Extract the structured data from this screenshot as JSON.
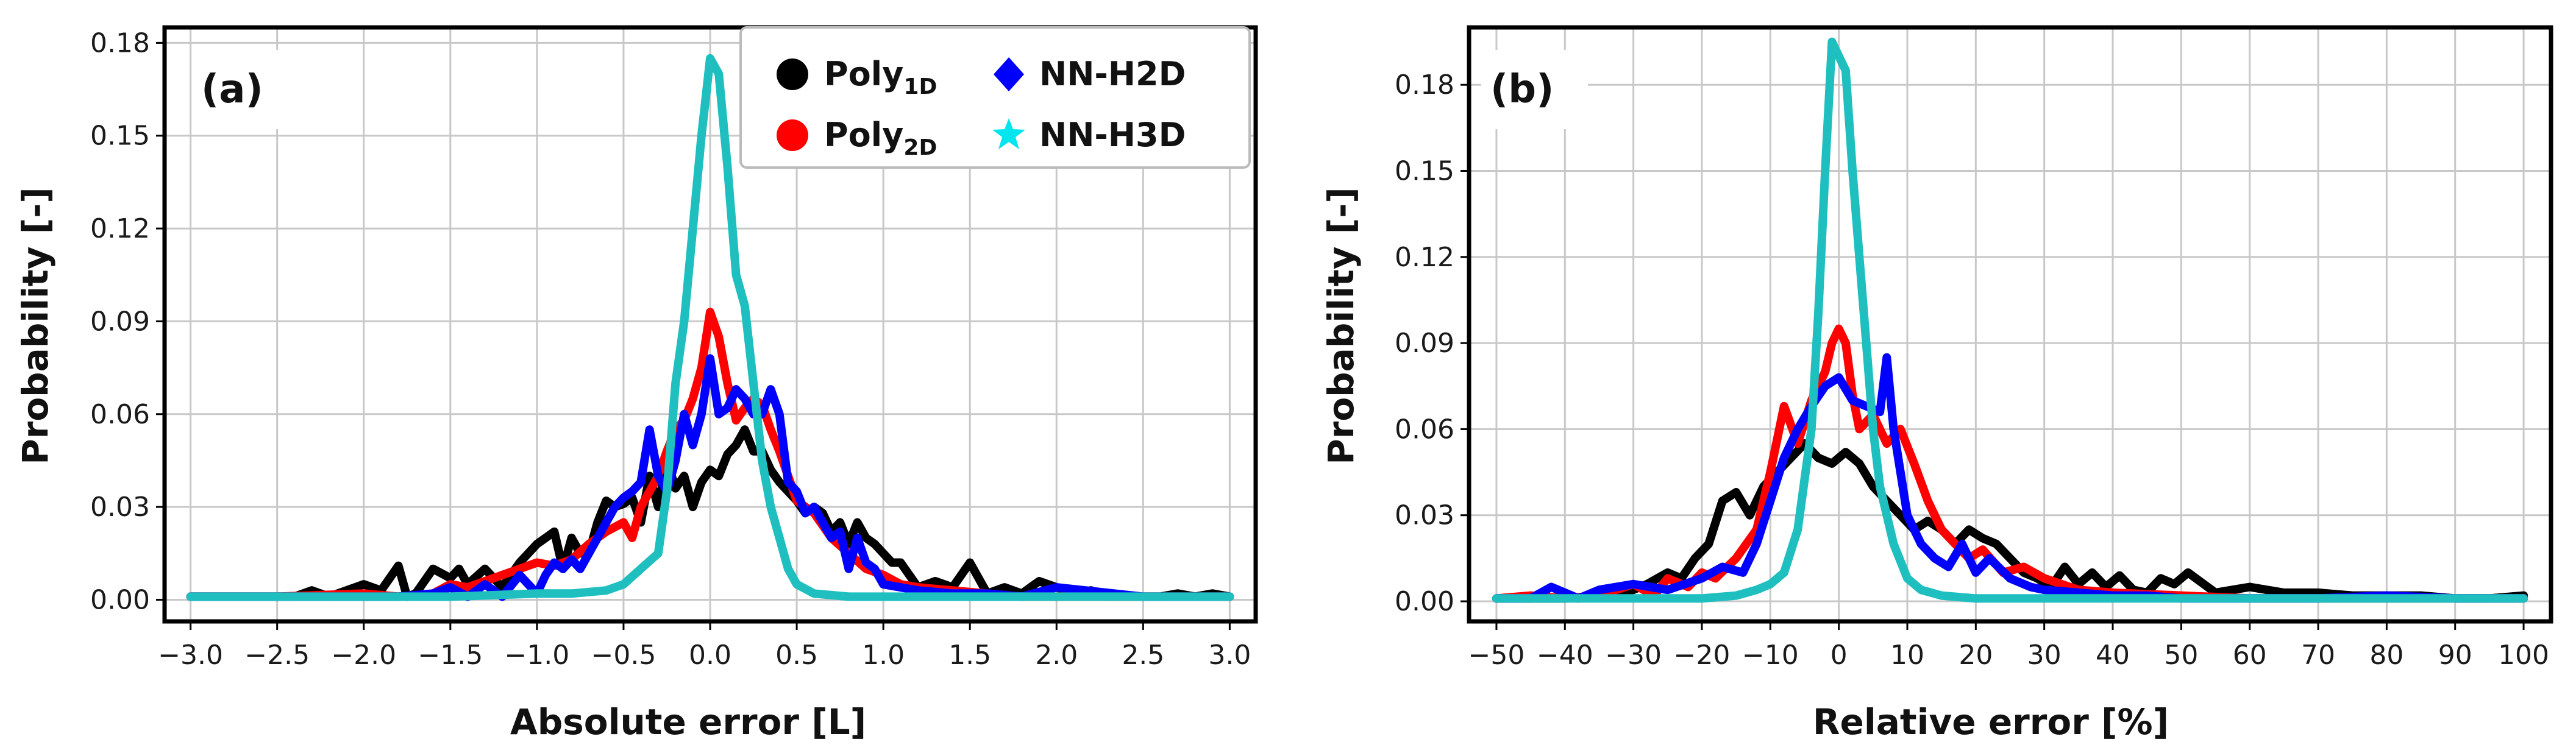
{
  "chart_data": [
    {
      "type": "line",
      "panel_label": "(a)",
      "xlabel": "Absolute error [L]",
      "ylabel": "Probability [-]",
      "xlim": [
        -3.15,
        3.15
      ],
      "ylim": [
        -0.007,
        0.185
      ],
      "xticks": [
        -3.0,
        -2.5,
        -2.0,
        -1.5,
        -1.0,
        -0.5,
        0.0,
        0.5,
        1.0,
        1.5,
        2.0,
        2.5,
        3.0
      ],
      "xtick_labels": [
        "−3.0",
        "−2.5",
        "−2.0",
        "−1.5",
        "−1.0",
        "−0.5",
        "0.0",
        "0.5",
        "1.0",
        "1.5",
        "2.0",
        "2.5",
        "3.0"
      ],
      "yticks": [
        0.0,
        0.03,
        0.06,
        0.09,
        0.12,
        0.15,
        0.18
      ],
      "ytick_labels": [
        "0.00",
        "0.03",
        "0.06",
        "0.09",
        "0.12",
        "0.15",
        "0.18"
      ],
      "grid": true,
      "legend": {
        "placement": "top-right",
        "items": [
          {
            "label": "Poly",
            "sub": "1D",
            "marker": "circle",
            "color": "#000000"
          },
          {
            "label": "Poly",
            "sub": "2D",
            "marker": "circle",
            "color": "#ff0000"
          },
          {
            "label": "NN-H2D",
            "sub": "",
            "marker": "diamond",
            "color": "#0000ff"
          },
          {
            "label": "NN-H3D",
            "sub": "",
            "marker": "star",
            "color": "#00e5ee"
          }
        ]
      },
      "series": [
        {
          "name": "Poly1D",
          "color": "#000000",
          "x": [
            -3.0,
            -2.8,
            -2.6,
            -2.4,
            -2.3,
            -2.2,
            -2.1,
            -2.0,
            -1.9,
            -1.8,
            -1.75,
            -1.7,
            -1.6,
            -1.5,
            -1.45,
            -1.4,
            -1.3,
            -1.2,
            -1.1,
            -1.0,
            -0.95,
            -0.9,
            -0.85,
            -0.8,
            -0.75,
            -0.7,
            -0.65,
            -0.6,
            -0.55,
            -0.5,
            -0.45,
            -0.4,
            -0.35,
            -0.3,
            -0.25,
            -0.2,
            -0.15,
            -0.1,
            -0.05,
            0.0,
            0.05,
            0.1,
            0.15,
            0.2,
            0.25,
            0.3,
            0.35,
            0.4,
            0.45,
            0.5,
            0.55,
            0.6,
            0.65,
            0.7,
            0.75,
            0.8,
            0.85,
            0.9,
            0.95,
            1.0,
            1.05,
            1.1,
            1.2,
            1.3,
            1.4,
            1.5,
            1.6,
            1.7,
            1.8,
            1.9,
            2.0,
            2.1,
            2.2,
            2.3,
            2.4,
            2.5,
            2.6,
            2.7,
            2.8,
            2.9,
            3.0
          ],
          "values": [
            0.001,
            0.001,
            0.001,
            0.001,
            0.003,
            0.001,
            0.003,
            0.005,
            0.003,
            0.011,
            0.001,
            0.002,
            0.01,
            0.007,
            0.01,
            0.005,
            0.01,
            0.004,
            0.012,
            0.018,
            0.02,
            0.022,
            0.01,
            0.02,
            0.015,
            0.015,
            0.025,
            0.032,
            0.03,
            0.031,
            0.033,
            0.025,
            0.04,
            0.03,
            0.045,
            0.036,
            0.04,
            0.03,
            0.038,
            0.042,
            0.04,
            0.047,
            0.05,
            0.055,
            0.048,
            0.048,
            0.042,
            0.038,
            0.035,
            0.032,
            0.028,
            0.03,
            0.028,
            0.022,
            0.025,
            0.018,
            0.025,
            0.02,
            0.018,
            0.015,
            0.012,
            0.012,
            0.004,
            0.006,
            0.004,
            0.012,
            0.002,
            0.004,
            0.002,
            0.006,
            0.004,
            0.002,
            0.003,
            0.001,
            0.001,
            0.001,
            0.001,
            0.002,
            0.001,
            0.002,
            0.001
          ]
        },
        {
          "name": "Poly2D",
          "color": "#ff0000",
          "x": [
            -3.0,
            -2.5,
            -2.0,
            -1.8,
            -1.6,
            -1.5,
            -1.4,
            -1.3,
            -1.2,
            -1.1,
            -1.0,
            -0.9,
            -0.8,
            -0.7,
            -0.6,
            -0.5,
            -0.45,
            -0.4,
            -0.35,
            -0.3,
            -0.25,
            -0.2,
            -0.15,
            -0.1,
            -0.05,
            0.0,
            0.05,
            0.1,
            0.15,
            0.2,
            0.25,
            0.3,
            0.35,
            0.4,
            0.45,
            0.5,
            0.55,
            0.6,
            0.7,
            0.8,
            0.9,
            1.0,
            1.1,
            1.2,
            1.4,
            1.6,
            1.8,
            2.0,
            2.5,
            3.0
          ],
          "values": [
            0.001,
            0.001,
            0.002,
            0.001,
            0.002,
            0.005,
            0.004,
            0.006,
            0.008,
            0.01,
            0.012,
            0.011,
            0.013,
            0.018,
            0.022,
            0.025,
            0.02,
            0.03,
            0.035,
            0.04,
            0.048,
            0.055,
            0.058,
            0.065,
            0.075,
            0.093,
            0.085,
            0.07,
            0.058,
            0.062,
            0.065,
            0.063,
            0.055,
            0.048,
            0.04,
            0.032,
            0.03,
            0.028,
            0.02,
            0.015,
            0.01,
            0.008,
            0.005,
            0.004,
            0.003,
            0.002,
            0.001,
            0.001,
            0.001,
            0.001
          ]
        },
        {
          "name": "NN-H2D",
          "color": "#0000ff",
          "x": [
            -3.0,
            -2.5,
            -2.0,
            -1.8,
            -1.6,
            -1.5,
            -1.4,
            -1.3,
            -1.2,
            -1.1,
            -1.0,
            -0.95,
            -0.9,
            -0.85,
            -0.8,
            -0.75,
            -0.7,
            -0.65,
            -0.6,
            -0.55,
            -0.5,
            -0.45,
            -0.4,
            -0.35,
            -0.3,
            -0.25,
            -0.2,
            -0.15,
            -0.1,
            -0.05,
            0.0,
            0.05,
            0.1,
            0.15,
            0.2,
            0.25,
            0.3,
            0.35,
            0.4,
            0.45,
            0.5,
            0.55,
            0.6,
            0.65,
            0.7,
            0.75,
            0.8,
            0.85,
            0.9,
            0.95,
            1.0,
            1.1,
            1.2,
            1.4,
            1.6,
            1.8,
            2.0,
            2.5,
            3.0
          ],
          "values": [
            0.001,
            0.001,
            0.001,
            0.001,
            0.002,
            0.004,
            0.001,
            0.005,
            0.001,
            0.008,
            0.002,
            0.008,
            0.012,
            0.01,
            0.013,
            0.01,
            0.015,
            0.02,
            0.025,
            0.03,
            0.033,
            0.035,
            0.038,
            0.055,
            0.04,
            0.035,
            0.045,
            0.06,
            0.05,
            0.06,
            0.078,
            0.06,
            0.062,
            0.068,
            0.065,
            0.06,
            0.06,
            0.068,
            0.06,
            0.038,
            0.035,
            0.028,
            0.03,
            0.025,
            0.02,
            0.022,
            0.01,
            0.02,
            0.012,
            0.01,
            0.005,
            0.004,
            0.003,
            0.002,
            0.002,
            0.001,
            0.004,
            0.001,
            0.001
          ]
        },
        {
          "name": "NN-H3D",
          "color": "#1fbfbf",
          "x": [
            -3.0,
            -2.0,
            -1.5,
            -1.0,
            -0.8,
            -0.6,
            -0.5,
            -0.4,
            -0.3,
            -0.25,
            -0.2,
            -0.15,
            -0.1,
            -0.05,
            0.0,
            0.05,
            0.1,
            0.15,
            0.2,
            0.25,
            0.3,
            0.35,
            0.4,
            0.45,
            0.5,
            0.6,
            0.8,
            1.0,
            1.5,
            2.0,
            3.0
          ],
          "values": [
            0.001,
            0.001,
            0.001,
            0.002,
            0.002,
            0.003,
            0.005,
            0.01,
            0.015,
            0.035,
            0.07,
            0.09,
            0.12,
            0.15,
            0.175,
            0.17,
            0.14,
            0.105,
            0.095,
            0.07,
            0.045,
            0.03,
            0.02,
            0.01,
            0.005,
            0.002,
            0.001,
            0.001,
            0.001,
            0.001,
            0.001
          ]
        }
      ]
    },
    {
      "type": "line",
      "panel_label": "(b)",
      "xlabel": "Relative error [%]",
      "ylabel": "Probability [-]",
      "xlim": [
        -54,
        104
      ],
      "ylim": [
        -0.007,
        0.2
      ],
      "xticks": [
        -50,
        -40,
        -30,
        -20,
        -10,
        0,
        10,
        20,
        30,
        40,
        50,
        60,
        70,
        80,
        90,
        100
      ],
      "xtick_labels": [
        "−50",
        "−40",
        "−30",
        "−20",
        "−10",
        "0",
        "10",
        "20",
        "30",
        "40",
        "50",
        "60",
        "70",
        "80",
        "90",
        "100"
      ],
      "yticks": [
        0.0,
        0.03,
        0.06,
        0.09,
        0.12,
        0.15,
        0.18
      ],
      "ytick_labels": [
        "0.00",
        "0.03",
        "0.06",
        "0.09",
        "0.12",
        "0.15",
        "0.18"
      ],
      "grid": true,
      "series": [
        {
          "name": "Poly1D",
          "color": "#000000",
          "x": [
            -50,
            -45,
            -40,
            -35,
            -30,
            -28,
            -25,
            -23,
            -21,
            -19,
            -17,
            -15,
            -13,
            -11,
            -9,
            -7,
            -5,
            -3,
            -1,
            1,
            3,
            5,
            7,
            9,
            11,
            13,
            15,
            17,
            19,
            21,
            23,
            25,
            27,
            29,
            31,
            33,
            35,
            37,
            39,
            41,
            43,
            45,
            47,
            49,
            51,
            55,
            60,
            65,
            70,
            75,
            80,
            85,
            90,
            95,
            100
          ],
          "values": [
            0.001,
            0.001,
            0.001,
            0.002,
            0.004,
            0.006,
            0.01,
            0.008,
            0.015,
            0.02,
            0.035,
            0.038,
            0.03,
            0.04,
            0.045,
            0.05,
            0.055,
            0.05,
            0.048,
            0.052,
            0.048,
            0.04,
            0.035,
            0.03,
            0.025,
            0.028,
            0.025,
            0.02,
            0.025,
            0.022,
            0.02,
            0.015,
            0.01,
            0.008,
            0.005,
            0.012,
            0.006,
            0.01,
            0.005,
            0.009,
            0.004,
            0.003,
            0.008,
            0.006,
            0.01,
            0.003,
            0.005,
            0.003,
            0.003,
            0.002,
            0.002,
            0.002,
            0.001,
            0.001,
            0.002
          ]
        },
        {
          "name": "Poly2D",
          "color": "#ff0000",
          "x": [
            -50,
            -45,
            -40,
            -35,
            -30,
            -27,
            -25,
            -22,
            -20,
            -18,
            -15,
            -12,
            -10,
            -8,
            -6,
            -4,
            -2,
            -1,
            0,
            1,
            2,
            3,
            5,
            7,
            9,
            11,
            13,
            15,
            17,
            19,
            21,
            24,
            27,
            30,
            35,
            40,
            50,
            60,
            70,
            80,
            90,
            100
          ],
          "values": [
            0.001,
            0.002,
            0.001,
            0.002,
            0.006,
            0.002,
            0.008,
            0.005,
            0.01,
            0.008,
            0.015,
            0.025,
            0.045,
            0.068,
            0.055,
            0.07,
            0.08,
            0.09,
            0.095,
            0.09,
            0.072,
            0.06,
            0.065,
            0.055,
            0.06,
            0.048,
            0.035,
            0.025,
            0.02,
            0.015,
            0.018,
            0.01,
            0.012,
            0.008,
            0.004,
            0.003,
            0.002,
            0.001,
            0.001,
            0.001,
            0.001,
            0.001
          ]
        },
        {
          "name": "NN-H2D",
          "color": "#0000ff",
          "x": [
            -50,
            -45,
            -42,
            -38,
            -35,
            -30,
            -25,
            -20,
            -17,
            -14,
            -12,
            -10,
            -8,
            -6,
            -4,
            -2,
            0,
            2,
            4,
            6,
            7,
            8,
            9,
            10,
            12,
            14,
            16,
            18,
            20,
            22,
            25,
            28,
            30,
            35,
            40,
            45,
            50,
            60,
            70,
            80,
            90,
            100
          ],
          "values": [
            0.001,
            0.001,
            0.005,
            0.001,
            0.004,
            0.006,
            0.004,
            0.008,
            0.012,
            0.01,
            0.02,
            0.035,
            0.05,
            0.06,
            0.068,
            0.075,
            0.078,
            0.07,
            0.068,
            0.066,
            0.085,
            0.06,
            0.045,
            0.03,
            0.02,
            0.015,
            0.012,
            0.02,
            0.01,
            0.015,
            0.008,
            0.005,
            0.004,
            0.003,
            0.002,
            0.002,
            0.001,
            0.001,
            0.001,
            0.002,
            0.001,
            0.001
          ]
        },
        {
          "name": "NN-H3D",
          "color": "#1fbfbf",
          "x": [
            -50,
            -30,
            -20,
            -15,
            -12,
            -10,
            -8,
            -6,
            -4,
            -3,
            -2,
            -1,
            0,
            1,
            2,
            3,
            4,
            5,
            6,
            8,
            10,
            12,
            15,
            20,
            30,
            50,
            100
          ],
          "values": [
            0.001,
            0.001,
            0.001,
            0.002,
            0.004,
            0.006,
            0.01,
            0.025,
            0.06,
            0.1,
            0.15,
            0.195,
            0.19,
            0.185,
            0.15,
            0.12,
            0.09,
            0.06,
            0.04,
            0.02,
            0.008,
            0.004,
            0.002,
            0.001,
            0.001,
            0.001,
            0.001
          ]
        }
      ]
    }
  ]
}
